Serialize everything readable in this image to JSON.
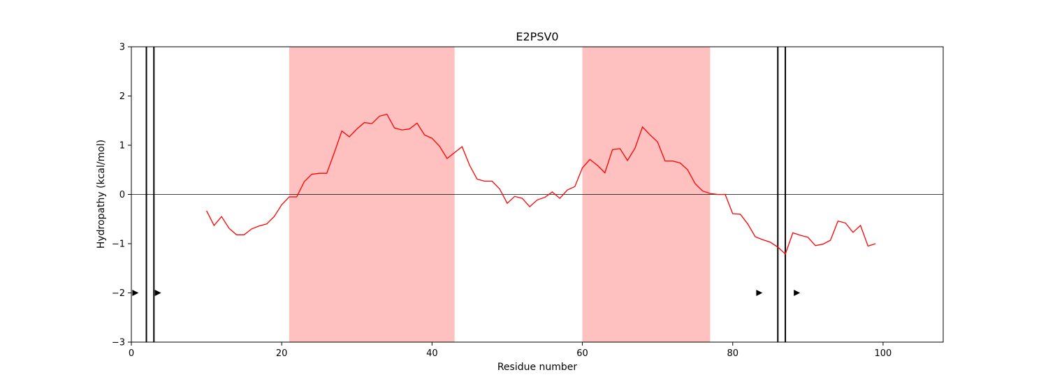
{
  "chart_data": {
    "type": "line",
    "title": "E2PSV0",
    "xlabel": "Residue number",
    "ylabel": "Hydropathy (kcal/mol)",
    "xlim": [
      0,
      108
    ],
    "ylim": [
      -3,
      3
    ],
    "xticks": [
      0,
      20,
      40,
      60,
      80,
      100
    ],
    "yticks": [
      -3,
      -2,
      -1,
      0,
      1,
      2,
      3
    ],
    "grid": false,
    "legend": "none",
    "series": [
      {
        "color": "#ff0000",
        "x": [
          10,
          11,
          12,
          13,
          14,
          15,
          16,
          17,
          18,
          19,
          20,
          21,
          22,
          23,
          24,
          25,
          26,
          27,
          28,
          29,
          30,
          31,
          32,
          33,
          34,
          35,
          36,
          37,
          38,
          39,
          40,
          41,
          42,
          43,
          44,
          45,
          46,
          47,
          48,
          49,
          50,
          51,
          52,
          53,
          54,
          55,
          56,
          57,
          58,
          59,
          60,
          61,
          62,
          63,
          64,
          65,
          66,
          67,
          68,
          69,
          70,
          71,
          72,
          73,
          74,
          75,
          76,
          77,
          78,
          79,
          80,
          81,
          82,
          83,
          84,
          85,
          86,
          87,
          88,
          89,
          90,
          91,
          92,
          93,
          94,
          95,
          96,
          97,
          98,
          99
        ],
        "y": [
          -0.33,
          -0.63,
          -0.45,
          -0.69,
          -0.82,
          -0.82,
          -0.7,
          -0.64,
          -0.6,
          -0.45,
          -0.21,
          -0.05,
          -0.05,
          0.26,
          0.41,
          0.43,
          0.43,
          0.85,
          1.29,
          1.17,
          1.33,
          1.46,
          1.44,
          1.59,
          1.63,
          1.35,
          1.31,
          1.33,
          1.45,
          1.21,
          1.14,
          0.98,
          0.73,
          0.85,
          0.97,
          0.59,
          0.31,
          0.27,
          0.27,
          0.11,
          -0.18,
          -0.04,
          -0.08,
          -0.25,
          -0.11,
          -0.06,
          0.05,
          -0.08,
          0.09,
          0.16,
          0.54,
          0.71,
          0.59,
          0.44,
          0.91,
          0.93,
          0.69,
          0.94,
          1.37,
          1.21,
          1.07,
          0.68,
          0.68,
          0.64,
          0.5,
          0.22,
          0.07,
          0.02,
          0.0,
          0.0,
          -0.39,
          -0.4,
          -0.6,
          -0.86,
          -0.92,
          -0.97,
          -1.07,
          -1.21,
          -0.78,
          -0.83,
          -0.87,
          -1.04,
          -1.01,
          -0.93,
          -0.54,
          -0.58,
          -0.77,
          -0.63,
          -1.05,
          -1.0
        ]
      }
    ],
    "shaded_regions": [
      {
        "x_start": 21,
        "x_end": 43,
        "color": "#ffc0c0"
      },
      {
        "x_start": 60,
        "x_end": 77,
        "color": "#ffc0c0"
      }
    ],
    "vertical_lines": [
      2,
      3,
      86,
      87
    ],
    "markers": [
      {
        "x": 0.5,
        "y": -2
      },
      {
        "x": 3.5,
        "y": -2
      },
      {
        "x": 83.5,
        "y": -2
      },
      {
        "x": 88.5,
        "y": -2
      }
    ],
    "zero_line": 0
  }
}
